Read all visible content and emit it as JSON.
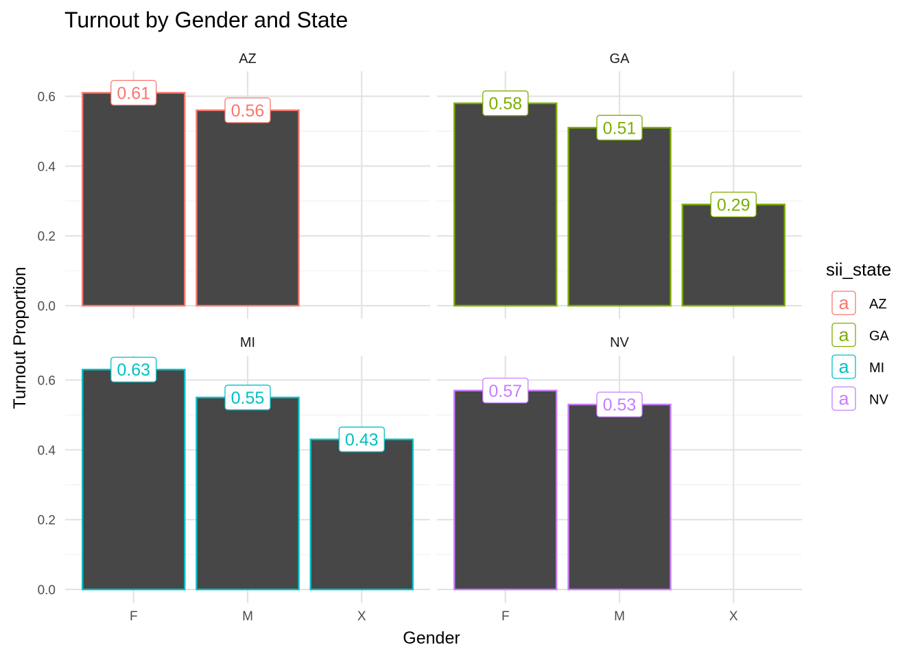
{
  "chart_data": {
    "type": "bar",
    "title": "Turnout by Gender and State",
    "xlabel": "Gender",
    "ylabel": "Turnout Proportion",
    "categories": [
      "F",
      "M",
      "X"
    ],
    "ylim": [
      0,
      0.65
    ],
    "yticks": [
      0.0,
      0.2,
      0.4,
      0.6
    ],
    "ytick_labels": [
      "0.0",
      "0.2",
      "0.4",
      "0.6"
    ],
    "grid": true,
    "bar_fill": "#474747",
    "legend": {
      "title": "sii_state",
      "position": "right",
      "glyph": "a"
    },
    "series": [
      {
        "name": "AZ",
        "color": "#F8766D",
        "values": [
          0.61,
          0.56,
          null
        ],
        "labels": [
          "0.61",
          "0.56",
          null
        ]
      },
      {
        "name": "GA",
        "color": "#7CAE00",
        "values": [
          0.58,
          0.51,
          0.29
        ],
        "labels": [
          "0.58",
          "0.51",
          "0.29"
        ]
      },
      {
        "name": "MI",
        "color": "#00BFC4",
        "values": [
          0.63,
          0.55,
          0.43
        ],
        "labels": [
          "0.63",
          "0.55",
          "0.43"
        ]
      },
      {
        "name": "NV",
        "color": "#C77CFF",
        "values": [
          0.57,
          0.53,
          null
        ],
        "labels": [
          "0.57",
          "0.53",
          null
        ]
      }
    ]
  }
}
